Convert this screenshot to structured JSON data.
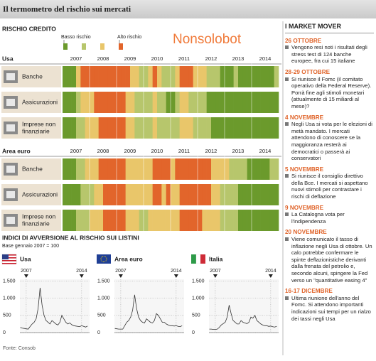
{
  "header": {
    "title": "Il termometro del rischio sui mercati"
  },
  "watermark": "Nonsolobot",
  "credit_risk": {
    "title": "RISCHIO CREDITO",
    "legend": {
      "low": "Basso rischio",
      "high": "Alto rischio",
      "colors": [
        "#6b9a2c",
        "#b7c66c",
        "#e9c66a",
        "#e2652b"
      ]
    },
    "years": [
      "2007",
      "2008",
      "2009",
      "2010",
      "2011",
      "2012",
      "2013",
      "2014"
    ],
    "regions": [
      {
        "name": "Usa",
        "rows": [
          {
            "label": [
              "Banche"
            ],
            "levels": [
              1,
              1,
              1,
              3,
              4,
              4,
              4,
              4,
              4,
              4,
              4,
              4,
              4,
              4,
              4,
              3,
              3,
              2,
              2,
              3,
              4,
              3,
              2,
              2,
              2,
              3,
              4,
              4,
              4,
              3,
              3,
              3,
              2,
              2,
              2,
              1,
              1,
              1,
              2,
              1,
              1,
              1,
              1,
              1,
              1,
              1,
              1,
              2
            ]
          },
          {
            "label": [
              "Assicurazioni"
            ],
            "levels": [
              1,
              1,
              1,
              2,
              3,
              3,
              3,
              4,
              4,
              4,
              4,
              4,
              4,
              4,
              3,
              3,
              2,
              2,
              2,
              2,
              3,
              2,
              2,
              1,
              1,
              2,
              3,
              3,
              2,
              2,
              2,
              2,
              1,
              1,
              1,
              1,
              1,
              1,
              1,
              1,
              1,
              1,
              1,
              1,
              1,
              1,
              1,
              1
            ]
          },
          {
            "label": [
              "Imprese non",
              "finanziarie"
            ],
            "levels": [
              1,
              1,
              1,
              2,
              2,
              3,
              3,
              3,
              4,
              4,
              4,
              4,
              4,
              4,
              3,
              3,
              2,
              2,
              2,
              2,
              3,
              2,
              2,
              2,
              2,
              2,
              3,
              3,
              3,
              2,
              2,
              2,
              2,
              1,
              1,
              1,
              1,
              1,
              1,
              1,
              1,
              1,
              1,
              1,
              1,
              1,
              1,
              1
            ]
          }
        ]
      },
      {
        "name": "Area euro",
        "rows": [
          {
            "label": [
              "Banche"
            ],
            "levels": [
              1,
              1,
              1,
              2,
              2,
              3,
              3,
              3,
              4,
              4,
              4,
              4,
              4,
              4,
              3,
              3,
              3,
              3,
              3,
              3,
              4,
              4,
              4,
              4,
              3,
              4,
              4,
              4,
              4,
              4,
              4,
              4,
              4,
              3,
              3,
              3,
              3,
              2,
              2,
              2,
              2,
              1,
              1,
              1,
              1,
              1,
              2,
              2
            ]
          },
          {
            "label": [
              "Assicurazioni"
            ],
            "levels": [
              1,
              1,
              1,
              1,
              2,
              2,
              2,
              3,
              3,
              4,
              4,
              4,
              4,
              4,
              3,
              3,
              3,
              3,
              3,
              3,
              4,
              4,
              3,
              4,
              3,
              3,
              4,
              4,
              4,
              4,
              4,
              4,
              4,
              3,
              3,
              2,
              2,
              2,
              2,
              1,
              1,
              1,
              1,
              1,
              1,
              1,
              1,
              1
            ]
          },
          {
            "label": [
              "Imprese non",
              "finanziarie"
            ],
            "levels": [
              1,
              1,
              1,
              2,
              2,
              2,
              3,
              3,
              3,
              4,
              4,
              4,
              4,
              4,
              3,
              3,
              3,
              2,
              2,
              3,
              3,
              3,
              3,
              3,
              3,
              3,
              4,
              4,
              4,
              4,
              4,
              3,
              3,
              3,
              3,
              2,
              2,
              2,
              2,
              1,
              1,
              1,
              1,
              1,
              1,
              1,
              1,
              1
            ]
          }
        ]
      }
    ]
  },
  "indices": {
    "title": "INDICI DI AVVERSIONE AL RISCHIO SUI LISTINI",
    "subtitle": "Base gennaio 2007 = 100"
  },
  "chart_data": [
    {
      "type": "line",
      "title": "Usa",
      "color": "#333333",
      "x": [
        2006.25,
        2006.5,
        2006.75,
        2007,
        2007.25,
        2007.5,
        2007.75,
        2008,
        2008.25,
        2008.5,
        2008.75,
        2009,
        2009.25,
        2009.5,
        2009.75,
        2010,
        2010.25,
        2010.5,
        2010.75,
        2011,
        2011.25,
        2011.5,
        2011.75,
        2012,
        2012.25,
        2012.5,
        2012.75,
        2013,
        2013.25,
        2013.5,
        2013.75,
        2014,
        2014.25,
        2014.5,
        2014.75
      ],
      "values": [
        150,
        130,
        120,
        110,
        100,
        180,
        250,
        300,
        400,
        700,
        1300,
        800,
        500,
        350,
        300,
        250,
        350,
        300,
        250,
        220,
        300,
        500,
        400,
        300,
        250,
        280,
        230,
        200,
        190,
        180,
        170,
        200,
        180,
        160,
        190
      ],
      "xlim": [
        2006.2,
        2015
      ],
      "xticks": [
        2007,
        2014
      ],
      "ylim": [
        0,
        1550
      ],
      "yticks": [
        0,
        500,
        {
          "value": 1000,
          "label": "1.000"
        },
        {
          "value": 1500,
          "label": "1.500"
        }
      ],
      "grid": true
    },
    {
      "type": "line",
      "title": "Area euro",
      "color": "#333333",
      "x": [
        2006.25,
        2006.5,
        2006.75,
        2007,
        2007.25,
        2007.5,
        2007.75,
        2008,
        2008.25,
        2008.5,
        2008.75,
        2009,
        2009.25,
        2009.5,
        2009.75,
        2010,
        2010.25,
        2010.5,
        2010.75,
        2011,
        2011.25,
        2011.5,
        2011.75,
        2012,
        2012.25,
        2012.5,
        2012.75,
        2013,
        2013.25,
        2013.5,
        2013.75,
        2014,
        2014.25,
        2014.5,
        2014.75
      ],
      "values": [
        120,
        110,
        100,
        100,
        100,
        200,
        300,
        350,
        450,
        650,
        1100,
        700,
        450,
        350,
        300,
        280,
        400,
        350,
        300,
        280,
        350,
        550,
        500,
        400,
        300,
        300,
        250,
        220,
        200,
        200,
        190,
        200,
        180,
        170,
        200
      ],
      "xlim": [
        2006.2,
        2015
      ],
      "xticks": [
        2007,
        2014
      ],
      "ylim": [
        0,
        1550
      ],
      "yticks": [
        0,
        500,
        {
          "value": 1000,
          "label": "1.000"
        },
        {
          "value": 1500,
          "label": "1.500"
        }
      ],
      "grid": true
    },
    {
      "type": "line",
      "title": "Italia",
      "color": "#333333",
      "x": [
        2006.25,
        2006.5,
        2006.75,
        2007,
        2007.25,
        2007.5,
        2007.75,
        2008,
        2008.25,
        2008.5,
        2008.75,
        2009,
        2009.25,
        2009.5,
        2009.75,
        2010,
        2010.25,
        2010.5,
        2010.75,
        2011,
        2011.25,
        2011.5,
        2011.75,
        2012,
        2012.25,
        2012.5,
        2012.75,
        2013,
        2013.25,
        2013.5,
        2013.75,
        2014,
        2014.25,
        2014.5,
        2014.75
      ],
      "values": [
        100,
        100,
        90,
        90,
        100,
        150,
        220,
        260,
        300,
        450,
        800,
        550,
        350,
        300,
        250,
        250,
        350,
        300,
        280,
        260,
        300,
        450,
        420,
        500,
        350,
        300,
        250,
        220,
        200,
        200,
        180,
        190,
        170,
        160,
        180
      ],
      "xlim": [
        2006.2,
        2015
      ],
      "xticks": [
        2007,
        2014
      ],
      "ylim": [
        0,
        1550
      ],
      "yticks": [
        0,
        500,
        {
          "value": 1000,
          "label": "1.000"
        },
        {
          "value": 1500,
          "label": "1.500"
        }
      ],
      "grid": true
    }
  ],
  "source": "Fonte: Consob",
  "market_mover": {
    "title": "I MARKET MOVER",
    "items": [
      {
        "date": "26 OTTOBRE",
        "text": "Vengono resi noti i risultati degli stress test di 124 banche europee, fra cui 15 italiane"
      },
      {
        "date": "28-29 OTTOBRE",
        "text": "Si riunisce il Fomc (il comitato operativo della Federal Reserve). Porrà fine agli stimoli monetari (attualmente di 15 miliardi al mese)?"
      },
      {
        "date": "4 NOVEMBRE",
        "text": "Negli Usa si vota per le elezioni di metà mandato. I mercati attendono di conoscere se la maggioranza resterà ai democratici o passerà ai conservatori"
      },
      {
        "date": "5 NOVEMBRE",
        "text": "Si riunisce il consiglio direttivo della Bce. I mercati si aspettano nuovi stimoli per contrastare i rischi di deflazione"
      },
      {
        "date": "9 NOVEMBRE",
        "text": "La Catalogna vota per l'indipendenza"
      },
      {
        "date": "20 NOVEMBRE",
        "text": "Viene comunicato il tasso di inflazione negli Usa di ottobre. Un calo potrebbe confermare le spinte deflazionistiche derivanti dalla frenata del petrolio e, secondo alcuni, spingere la Fed verso un \"quantitative easing 4\""
      },
      {
        "date": "16-17 DICEMBRE",
        "text": "Ultima riunione dell'anno del Fomc. Si attendono importanti indicazioni sui tempi per un rialzo dei tassi negli Usa"
      }
    ]
  }
}
